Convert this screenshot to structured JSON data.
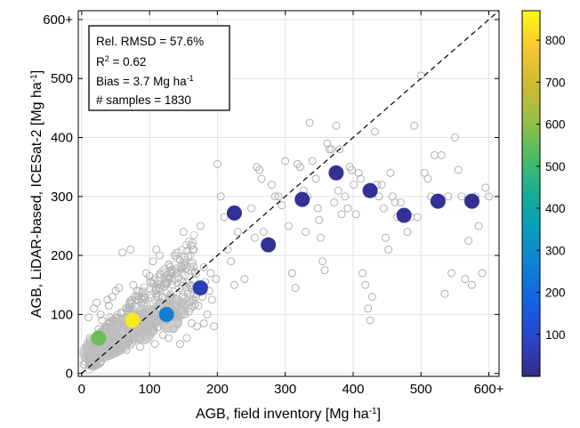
{
  "chart_data": {
    "type": "scatter",
    "xlabel": "AGB, field inventory  [Mg ha",
    "xlabel_sup": "-1",
    "xlabel_end": "]",
    "ylabel": "AGB, LiDAR-based, ICESat-2 [Mg ha",
    "ylabel_sup": "-1",
    "ylabel_end": "]",
    "xlim": [
      -5,
      615
    ],
    "ylim": [
      -5,
      615
    ],
    "xticks": [
      0,
      100,
      200,
      300,
      400,
      500,
      600
    ],
    "xtick_labels": [
      "0",
      "100",
      "200",
      "300",
      "400",
      "500",
      "600+"
    ],
    "yticks": [
      0,
      100,
      200,
      300,
      400,
      500,
      600
    ],
    "ytick_labels": [
      "0",
      "100",
      "200",
      "300",
      "400",
      "500",
      "600+"
    ],
    "grid": true,
    "one_to_one_line": true,
    "stats": {
      "rmsd": "Rel. RMSD = 57.6%",
      "r2_prefix": "R",
      "r2_sup": "2",
      "r2_suffix": " = 0.62",
      "bias_prefix": "Bias = 3.7 Mg ha",
      "bias_sup": "-1",
      "samples": "# samples = 1830"
    },
    "colorbar": {
      "min": 0,
      "max": 870,
      "ticks": [
        100,
        200,
        300,
        400,
        500,
        600,
        700,
        800
      ],
      "tick_labels": [
        "100",
        "200",
        "300",
        "400",
        "500",
        "600",
        "700",
        "800"
      ],
      "colormap": "parula"
    },
    "bin_means": [
      {
        "x": 25,
        "y": 60,
        "c": 560
      },
      {
        "x": 75,
        "y": 90,
        "c": 840
      },
      {
        "x": 125,
        "y": 100,
        "c": 260
      },
      {
        "x": 175,
        "y": 145,
        "c": 60
      },
      {
        "x": 225,
        "y": 272,
        "c": 20
      },
      {
        "x": 275,
        "y": 218,
        "c": 20
      },
      {
        "x": 325,
        "y": 295,
        "c": 20
      },
      {
        "x": 375,
        "y": 340,
        "c": 20
      },
      {
        "x": 425,
        "y": 310,
        "c": 20
      },
      {
        "x": 475,
        "y": 268,
        "c": 20
      },
      {
        "x": 525,
        "y": 292,
        "c": 20
      },
      {
        "x": 575,
        "y": 292,
        "c": 20
      }
    ],
    "samples_sparse": [
      [
        200,
        355
      ],
      [
        205,
        300
      ],
      [
        210,
        265
      ],
      [
        215,
        210
      ],
      [
        220,
        190
      ],
      [
        225,
        150
      ],
      [
        230,
        240
      ],
      [
        240,
        160
      ],
      [
        250,
        280
      ],
      [
        255,
        230
      ],
      [
        258,
        350
      ],
      [
        262,
        345
      ],
      [
        265,
        330
      ],
      [
        268,
        240
      ],
      [
        275,
        220
      ],
      [
        280,
        320
      ],
      [
        285,
        300
      ],
      [
        290,
        300
      ],
      [
        295,
        285
      ],
      [
        300,
        360
      ],
      [
        305,
        250
      ],
      [
        310,
        170
      ],
      [
        315,
        145
      ],
      [
        318,
        355
      ],
      [
        322,
        350
      ],
      [
        327,
        310
      ],
      [
        330,
        240
      ],
      [
        333,
        300
      ],
      [
        336,
        425
      ],
      [
        340,
        360
      ],
      [
        345,
        330
      ],
      [
        348,
        280
      ],
      [
        350,
        260
      ],
      [
        352,
        230
      ],
      [
        355,
        190
      ],
      [
        358,
        175
      ],
      [
        362,
        390
      ],
      [
        365,
        380
      ],
      [
        368,
        380
      ],
      [
        372,
        290
      ],
      [
        375,
        420
      ],
      [
        378,
        310
      ],
      [
        380,
        380
      ],
      [
        383,
        270
      ],
      [
        388,
        300
      ],
      [
        392,
        280
      ],
      [
        395,
        350
      ],
      [
        398,
        345
      ],
      [
        401,
        320
      ],
      [
        404,
        270
      ],
      [
        408,
        340
      ],
      [
        411,
        330
      ],
      [
        414,
        170
      ],
      [
        418,
        150
      ],
      [
        422,
        110
      ],
      [
        425,
        90
      ],
      [
        428,
        130
      ],
      [
        432,
        410
      ],
      [
        435,
        320
      ],
      [
        438,
        300
      ],
      [
        442,
        320
      ],
      [
        445,
        280
      ],
      [
        448,
        230
      ],
      [
        452,
        210
      ],
      [
        455,
        340
      ],
      [
        458,
        300
      ],
      [
        462,
        290
      ],
      [
        465,
        265
      ],
      [
        470,
        290
      ],
      [
        475,
        265
      ],
      [
        480,
        240
      ],
      [
        485,
        265
      ],
      [
        490,
        420
      ],
      [
        495,
        265
      ],
      [
        500,
        505
      ],
      [
        505,
        340
      ],
      [
        510,
        330
      ],
      [
        515,
        300
      ],
      [
        520,
        370
      ],
      [
        525,
        290
      ],
      [
        530,
        370
      ],
      [
        535,
        135
      ],
      [
        540,
        300
      ],
      [
        545,
        170
      ],
      [
        550,
        400
      ],
      [
        555,
        345
      ],
      [
        560,
        300
      ],
      [
        565,
        160
      ],
      [
        570,
        225
      ],
      [
        575,
        150
      ],
      [
        580,
        300
      ],
      [
        585,
        250
      ],
      [
        590,
        170
      ],
      [
        595,
        315
      ],
      [
        600,
        300
      ],
      [
        160,
        120
      ],
      [
        165,
        210
      ],
      [
        170,
        135
      ],
      [
        175,
        250
      ],
      [
        180,
        180
      ],
      [
        185,
        100
      ],
      [
        190,
        170
      ],
      [
        195,
        80
      ],
      [
        150,
        240
      ],
      [
        155,
        60
      ],
      [
        140,
        170
      ],
      [
        145,
        50
      ],
      [
        130,
        180
      ],
      [
        135,
        75
      ],
      [
        120,
        65
      ],
      [
        110,
        210
      ],
      [
        115,
        200
      ],
      [
        105,
        190
      ],
      [
        100,
        165
      ],
      [
        95,
        170
      ],
      [
        88,
        120
      ],
      [
        82,
        140
      ],
      [
        78,
        130
      ],
      [
        72,
        210
      ],
      [
        68,
        105
      ],
      [
        60,
        205
      ],
      [
        55,
        145
      ],
      [
        50,
        140
      ],
      [
        45,
        130
      ],
      [
        40,
        115
      ],
      [
        35,
        80
      ],
      [
        30,
        90
      ],
      [
        25,
        75
      ],
      [
        20,
        50
      ],
      [
        15,
        40
      ],
      [
        10,
        95
      ],
      [
        8,
        30
      ],
      [
        5,
        20
      ],
      [
        3,
        15
      ],
      [
        12,
        60
      ],
      [
        18,
        110
      ],
      [
        22,
        120
      ],
      [
        28,
        100
      ],
      [
        33,
        70
      ],
      [
        38,
        125
      ],
      [
        42,
        95
      ],
      [
        48,
        60
      ],
      [
        52,
        75
      ],
      [
        58,
        80
      ],
      [
        62,
        65
      ],
      [
        66,
        40
      ],
      [
        70,
        55
      ],
      [
        76,
        150
      ],
      [
        80,
        60
      ],
      [
        86,
        45
      ],
      [
        92,
        70
      ],
      [
        98,
        80
      ],
      [
        104,
        70
      ],
      [
        108,
        50
      ],
      [
        112,
        110
      ],
      [
        118,
        120
      ],
      [
        124,
        90
      ],
      [
        128,
        60
      ],
      [
        132,
        130
      ],
      [
        138,
        100
      ],
      [
        142,
        85
      ],
      [
        148,
        120
      ],
      [
        152,
        100
      ],
      [
        158,
        105
      ],
      [
        162,
        85
      ],
      [
        168,
        145
      ],
      [
        172,
        115
      ],
      [
        178,
        130
      ],
      [
        182,
        155
      ],
      [
        188,
        140
      ],
      [
        192,
        125
      ],
      [
        198,
        160
      ],
      [
        170,
        80
      ],
      [
        180,
        85
      ]
    ]
  }
}
